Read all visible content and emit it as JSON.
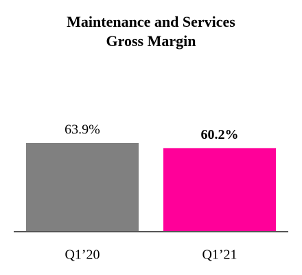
{
  "chart_data": {
    "type": "bar",
    "title": "Maintenance and Services Gross Margin",
    "categories": [
      "Q1’20",
      "Q1’21"
    ],
    "values": [
      63.9,
      60.2
    ],
    "value_labels": [
      "63.9%",
      "60.2%"
    ],
    "colors": [
      "#808080",
      "#ff0099"
    ],
    "ylim": [
      0,
      100
    ]
  }
}
